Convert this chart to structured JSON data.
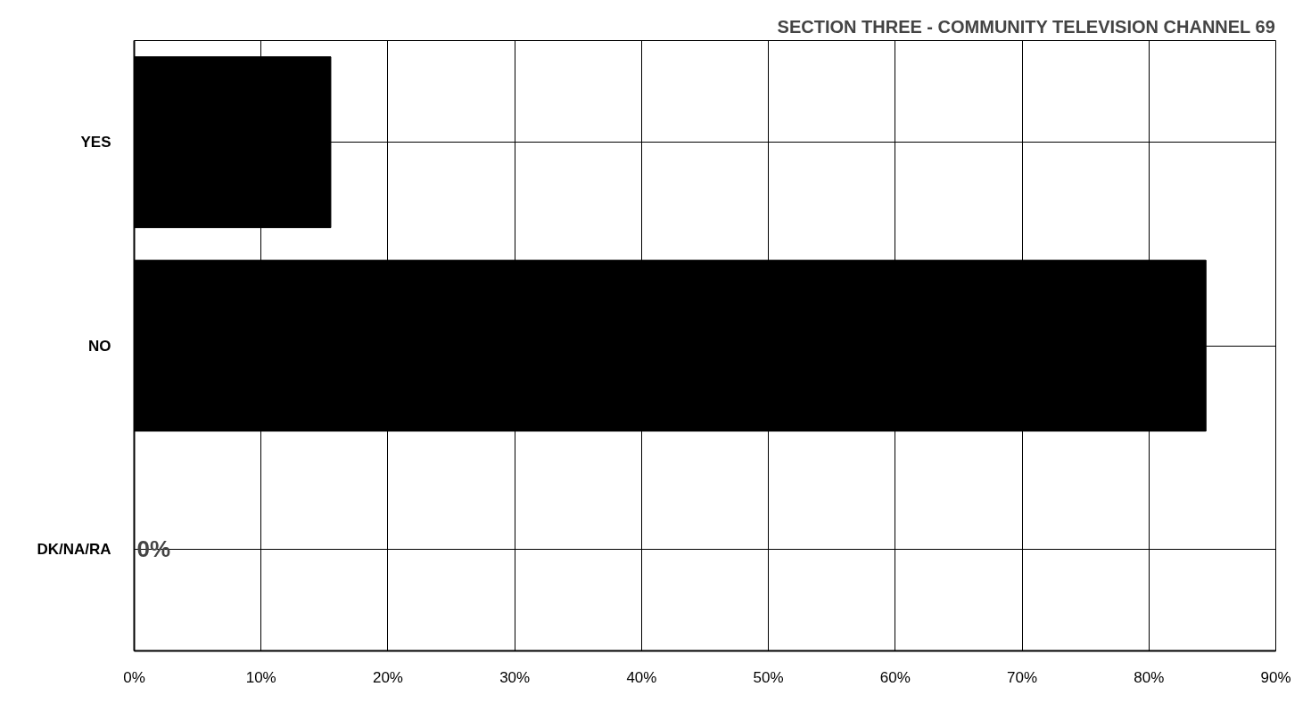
{
  "chart_data": {
    "type": "bar",
    "orientation": "horizontal",
    "title": "SECTION THREE - COMMUNITY TELEVISION CHANNEL 69",
    "categories": [
      "YES",
      "NO",
      "DK/NA/RA"
    ],
    "values": [
      15.5,
      84.5,
      0
    ],
    "color": "#000000",
    "value_labels": [
      null,
      null,
      "0%"
    ],
    "xlim": [
      0,
      90
    ],
    "xticks": [
      {
        "value": 0,
        "label": "0%"
      },
      {
        "value": 10,
        "label": "10%"
      },
      {
        "value": 20,
        "label": "20%"
      },
      {
        "value": 30,
        "label": "30%"
      },
      {
        "value": 40,
        "label": "40%"
      },
      {
        "value": 50,
        "label": "50%"
      },
      {
        "value": 60,
        "label": "60%"
      },
      {
        "value": 70,
        "label": "70%"
      },
      {
        "value": 80,
        "label": "80%"
      },
      {
        "value": 90,
        "label": "90%"
      }
    ],
    "grid": true
  }
}
